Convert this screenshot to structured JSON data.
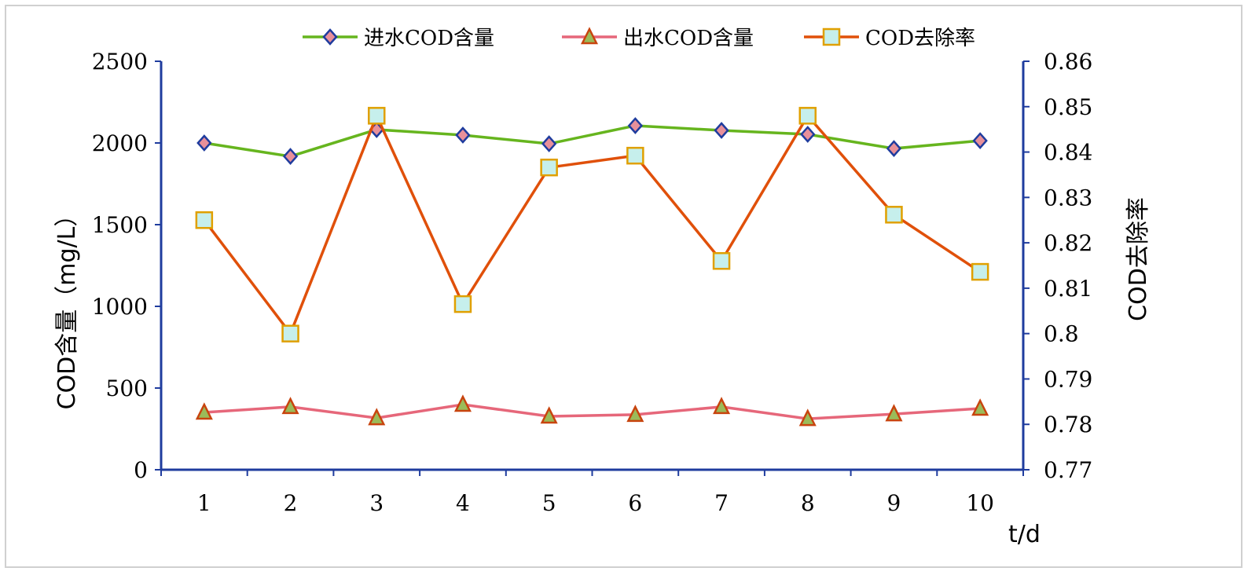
{
  "chart_data": {
    "type": "line",
    "x": [
      1,
      2,
      3,
      4,
      5,
      6,
      7,
      8,
      9,
      10
    ],
    "xlabel": "t/d",
    "ylabel_left": "COD含量（mg/L）",
    "ylabel_right": "COD去除率",
    "ylim_left": [
      0,
      2500
    ],
    "yticks_left": [
      "0",
      "500",
      "1000",
      "1500",
      "2000",
      "2500"
    ],
    "ylim_right": [
      0.77,
      0.86
    ],
    "yticks_right": [
      "0.77",
      "0.78",
      "0.79",
      "0.8",
      "0.81",
      "0.82",
      "0.83",
      "0.84",
      "0.85",
      "0.86"
    ],
    "grid": false,
    "legend_position": "top",
    "series": [
      {
        "name": "进水COD含量",
        "axis": "left",
        "marker": "diamond",
        "color": "#66B51E",
        "marker_fill": "#E8909A",
        "marker_stroke": "#1F3C9E",
        "values": [
          2000,
          1918,
          2082,
          2048,
          1995,
          2106,
          2077,
          2053,
          1966,
          2014
        ]
      },
      {
        "name": "出水COD含量",
        "axis": "left",
        "marker": "triangle",
        "color": "#E6677A",
        "marker_fill": "#9BBB59",
        "marker_stroke": "#C8440E",
        "values": [
          351,
          385,
          317,
          399,
          327,
          337,
          385,
          312,
          341,
          375
        ]
      },
      {
        "name": "COD去除率",
        "axis": "right",
        "marker": "square",
        "color": "#E0500A",
        "marker_fill": "#C6EFEC",
        "marker_stroke": "#E0A000",
        "values": [
          0.825,
          0.8,
          0.848,
          0.8065,
          0.8366,
          0.8392,
          0.816,
          0.848,
          0.8262,
          0.8136
        ]
      }
    ],
    "axis_color": "#1F3C9E",
    "border_color": "#D0D0D0"
  }
}
